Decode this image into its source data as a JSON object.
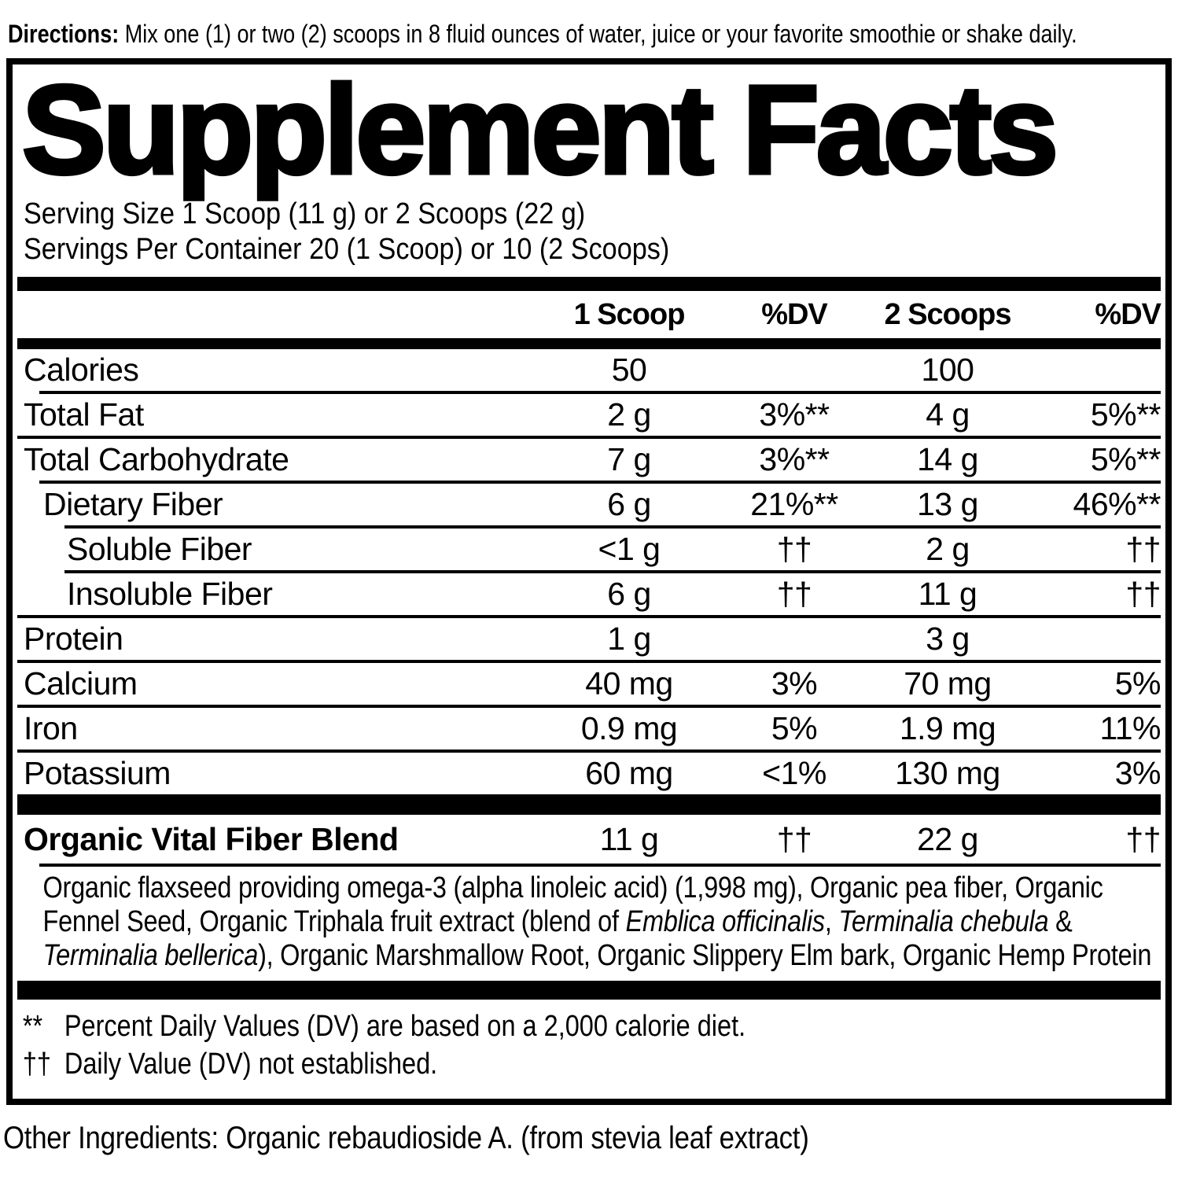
{
  "directions": {
    "label": "Directions:",
    "text": " Mix one (1) or two (2) scoops in 8 fluid ounces of water, juice or your favorite smoothie or shake daily."
  },
  "panel": {
    "title": "Supplement Facts",
    "serving_size": "Serving Size 1 Scoop (11 g) or 2 Scoops (22 g)",
    "servings_per_container": "Servings Per Container 20 (1 Scoop) or 10 (2 Scoops)",
    "columns": [
      "1 Scoop",
      "%DV",
      "2 Scoops",
      "%DV"
    ],
    "rows": [
      {
        "name": "Calories",
        "amt1": "50",
        "dv1": "",
        "amt2": "100",
        "dv2": ""
      },
      {
        "name": "Total Fat",
        "amt1": "2 g",
        "dv1": "3%**",
        "amt2": "4 g",
        "dv2": "5%**"
      },
      {
        "name": "Total Carbohydrate",
        "amt1": "7 g",
        "dv1": "3%**",
        "amt2": "14 g",
        "dv2": "5%**"
      },
      {
        "name": "Dietary Fiber",
        "amt1": "6 g",
        "dv1": "21%**",
        "amt2": "13 g",
        "dv2": "46%**"
      },
      {
        "name": "Soluble Fiber",
        "amt1": "<1 g",
        "dv1": "††",
        "amt2": "2 g",
        "dv2": "††"
      },
      {
        "name": "Insoluble Fiber",
        "amt1": "6 g",
        "dv1": "††",
        "amt2": "11 g",
        "dv2": "††"
      },
      {
        "name": "Protein",
        "amt1": "1 g",
        "dv1": "",
        "amt2": "3 g",
        "dv2": ""
      },
      {
        "name": "Calcium",
        "amt1": "40 mg",
        "dv1": "3%",
        "amt2": "70 mg",
        "dv2": "5%"
      },
      {
        "name": "Iron",
        "amt1": "0.9 mg",
        "dv1": "5%",
        "amt2": "1.9 mg",
        "dv2": "11%"
      },
      {
        "name": "Potassium",
        "amt1": "60 mg",
        "dv1": "<1%",
        "amt2": "130 mg",
        "dv2": "3%"
      }
    ],
    "blend": {
      "name": "Organic Vital Fiber Blend",
      "amt1": "11 g",
      "dv1": "††",
      "amt2": "22 g",
      "dv2": "††",
      "description_segments": [
        {
          "text": "Organic flaxseed providing omega-3 (alpha linoleic acid) (1,998 mg), Organic pea fiber, Organic Fennel Seed, Organic Triphala fruit extract (blend of ",
          "italic": false
        },
        {
          "text": "Emblica officinalis",
          "italic": true
        },
        {
          "text": ", ",
          "italic": false
        },
        {
          "text": "Terminalia chebula",
          "italic": true
        },
        {
          "text": " & ",
          "italic": false
        },
        {
          "text": "Terminalia bellerica",
          "italic": true
        },
        {
          "text": "), Organic Marshmallow Root, Organic Slippery Elm bark, Organic Hemp Protein",
          "italic": false
        }
      ]
    },
    "footnotes": [
      {
        "marker": "**",
        "text": "Percent Daily Values (DV) are based on a 2,000 calorie diet."
      },
      {
        "marker": "††",
        "text": "Daily Value (DV) not established."
      }
    ]
  },
  "other_ingredients": "Other Ingredients: Organic rebaudioside A. (from stevia leaf extract)"
}
